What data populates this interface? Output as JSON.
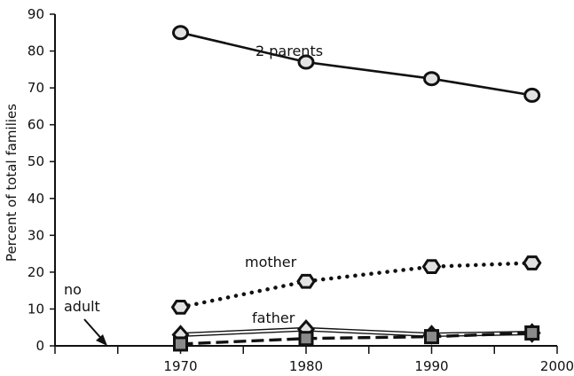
{
  "chart_data": {
    "type": "line",
    "xlabel": "",
    "ylabel": "Percent of total families",
    "xlim": [
      1960,
      2000
    ],
    "ylim": [
      0,
      90
    ],
    "x_ticks": [
      1970,
      1980,
      1990,
      2000
    ],
    "y_ticks": [
      0,
      10,
      20,
      30,
      40,
      50,
      60,
      70,
      80,
      90
    ],
    "grid": false,
    "series": [
      {
        "name": "2 parents",
        "style": "solid",
        "marker": "circle",
        "x": [
          1970,
          1980,
          1990,
          1998
        ],
        "y": [
          85,
          77,
          72.5,
          68
        ]
      },
      {
        "name": "mother",
        "style": "dotted",
        "marker": "hexagon",
        "x": [
          1970,
          1980,
          1990,
          1998
        ],
        "y": [
          10.5,
          17.5,
          21.5,
          22.5
        ]
      },
      {
        "name": "father",
        "style": "double",
        "marker": "diamond",
        "x": [
          1970,
          1980,
          1990,
          1998
        ],
        "y": [
          3,
          4.5,
          3,
          3.5
        ]
      },
      {
        "name": "no adult",
        "style": "dashed",
        "marker": "square",
        "x": [
          1970,
          1980,
          1990,
          1998
        ],
        "y": [
          0.5,
          2,
          2.5,
          3.5
        ]
      }
    ],
    "labels": {
      "two_parents": "2 parents",
      "mother": "mother",
      "father": "father",
      "no_adult_line1": "no",
      "no_adult_line2": "adult"
    }
  }
}
